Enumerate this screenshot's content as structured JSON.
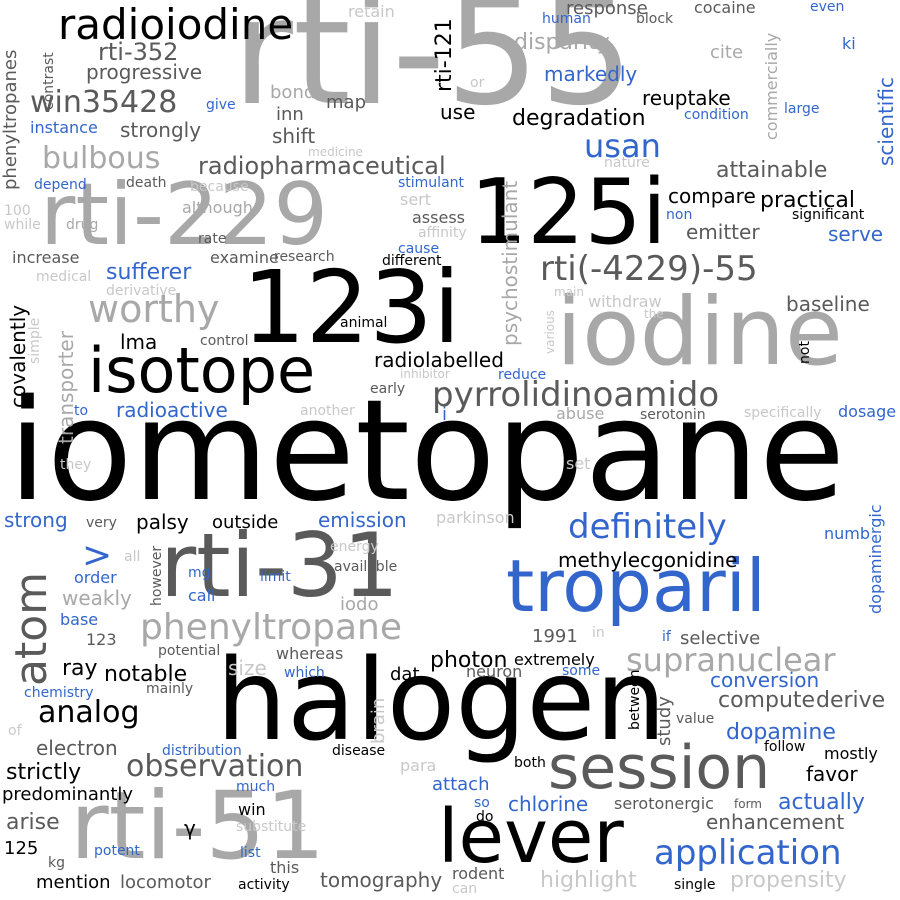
{
  "words": {
    "iometopane": "iometopane",
    "rti_55": "rti-55",
    "rti_229": "rti-229",
    "rti_31": "rti-31",
    "rti_51": "rti-51",
    "i123": "123i",
    "i125": "125i",
    "iodine": "iodine",
    "halogen": "halogen",
    "isotope": "isotope",
    "troparil": "troparil",
    "lever": "lever",
    "session": "session",
    "application": "application",
    "radioiodine": "radioiodine",
    "rti_352": "rti-352",
    "win35428": "win35428",
    "bulbous": "bulbous",
    "radiopharmaceutical": "radiopharmaceutical",
    "worthy": "worthy",
    "rti_4229_55": "rti(-4229)-55",
    "pyrrolidinoamido": "pyrrolidinoamido",
    "phenyltropane": "phenyltropane",
    "phenyltropanes": "phenyltropanes",
    "supranuclear": "supranuclear",
    "definitely": "definitely",
    "observation": "observation",
    "analog": "analog",
    "atom": "atom",
    "usan": "usan",
    "rti_121": "rti-121",
    "psychostimulant": "psychostimulant",
    "transporter": "transporter",
    "dopaminergic": "dopaminergic",
    "scientific": "scientific",
    "commercially": "commercially",
    "progressive": "progressive",
    "strongly": "strongly",
    "markedly": "markedly",
    "degradation": "degradation",
    "attainable": "attainable",
    "compare": "compare",
    "practical": "practical",
    "emitter": "emitter",
    "serve": "serve",
    "baseline": "baseline",
    "radiolabelled": "radiolabelled",
    "methylecgonidine": "methylecgonidine",
    "covalently": "covalently",
    "radioactive": "radioactive",
    "sufferer": "sufferer",
    "emission": "emission",
    "palsy": "palsy",
    "outside": "outside",
    "strong": "strong",
    "dopamine": "dopamine",
    "compute": "compute",
    "conversion": "conversion",
    "derive": "derive",
    "notable": "notable",
    "electron": "electron",
    "strictly": "strictly",
    "predominantly": "predominantly",
    "arise": "arise",
    "locomotor": "locomotor",
    "tomography": "tomography",
    "mention": "mention",
    "highlight": "highlight",
    "propensity": "propensity",
    "enhancement": "enhancement",
    "actually": "actually",
    "chlorine": "chlorine",
    "serotonergic": "serotonergic",
    "favor": "favor",
    "mostly": "mostly",
    "photon": "photon",
    "extremely": "extremely",
    "selective": "selective",
    "neuron": "neuron",
    "dat": "dat",
    "ray": "ray",
    "lma": "lma",
    "reuptake": "reuptake",
    "response": "response",
    "cocaine": "cocaine",
    "block": "block",
    "human": "human",
    "cite": "cite",
    "even": "even",
    "ki": "ki",
    "large": "large",
    "contrast": "contrast",
    "retain": "retain",
    "disparity": "disparity",
    "map": "map",
    "bond": "bond",
    "inn": "inn",
    "shift": "shift",
    "use": "use",
    "give": "give",
    "instance": "instance",
    "or": "or",
    "condition": "condition",
    "medicine": "medicine",
    "nature": "nature",
    "stimulant": "stimulant",
    "depend": "depend",
    "death": "death",
    "because": "because",
    "although": "although",
    "sert": "sert",
    "assess": "assess",
    "affinity": "affinity",
    "non": "non",
    "significant": "significant",
    "n100": "100",
    "while": "while",
    "drug": "drug",
    "rate": "rate",
    "cause": "cause",
    "increase": "increase",
    "examine": "examine",
    "research": "research",
    "different": "different",
    "medical": "medical",
    "derivative": "derivative",
    "main": "main",
    "withdraw": "withdraw",
    "the": "the",
    "simple": "simple",
    "animal": "animal",
    "control": "control",
    "various": "various",
    "not": "not",
    "inhibitor": "inhibitor",
    "reduce": "reduce",
    "early": "early",
    "to": "to",
    "another": "another",
    "i": "i",
    "abuse": "abuse",
    "serotonin": "serotonin",
    "specifically": "specifically",
    "dosage": "dosage",
    "they": "they",
    "set": "set",
    "parkinson": "parkinson",
    "very": "very",
    "numb": "numb",
    "energy": "energy",
    "all": "all",
    "order": "order",
    "mg": "mg",
    "available": "available",
    "limit": "limit",
    "however": "however",
    "weakly": "weakly",
    "call": "call",
    "iodo": "iodo",
    "base": "base",
    "n123": "123",
    "y1991": "1991",
    "in": "in",
    "if": "if",
    "potential": "potential",
    "whereas": "whereas",
    "size": "size",
    "which": "which",
    "some": "some",
    "mainly": "mainly",
    "chemistry": "chemistry",
    "brain": "brain",
    "between": "between",
    "study": "study",
    "value": "value",
    "of": "of",
    "distribution": "distribution",
    "disease": "disease",
    "follow": "follow",
    "para": "para",
    "both": "both",
    "attach": "attach",
    "much": "much",
    "so": "so",
    "do": "do",
    "form": "form",
    "win": "win",
    "substitute": "substitute",
    "gamma": "γ",
    "n125": "125",
    "kg": "kg",
    "potent": "potent",
    "list": "list",
    "this": "this",
    "rodent": "rodent",
    "can": "can",
    "activity": "activity",
    "single": "single",
    "gt": ">"
  }
}
